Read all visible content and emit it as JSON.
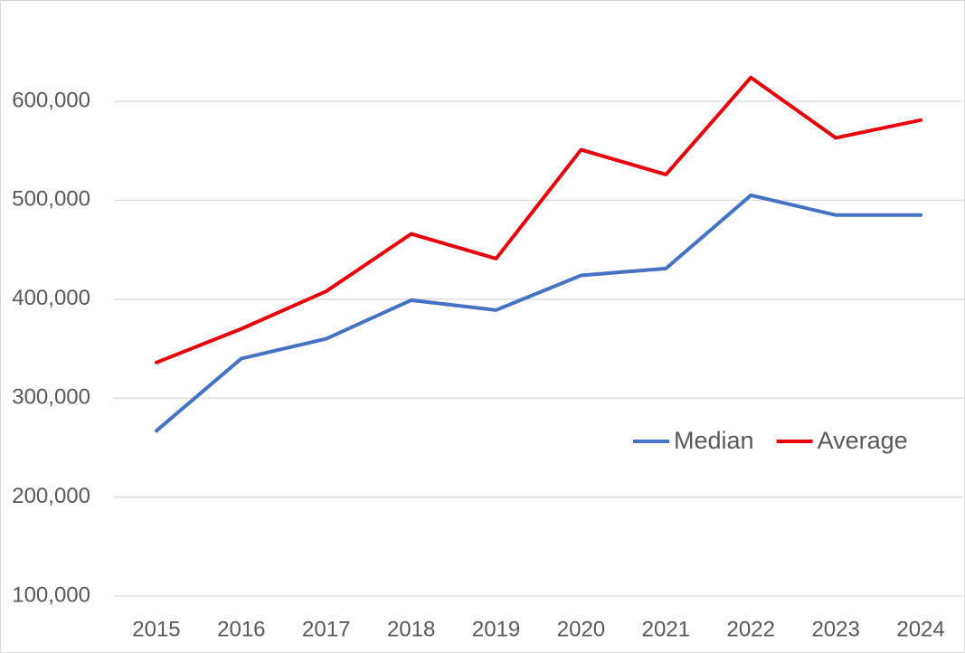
{
  "chart_data": {
    "type": "line",
    "categories": [
      "2015",
      "2016",
      "2017",
      "2018",
      "2019",
      "2020",
      "2021",
      "2022",
      "2023",
      "2024"
    ],
    "series": [
      {
        "name": "Median",
        "color": "#4472c4",
        "values": [
          267000,
          340000,
          360000,
          399000,
          389000,
          424000,
          431000,
          505000,
          485000,
          485000
        ]
      },
      {
        "name": "Average",
        "color": "#e8000b",
        "values": [
          336000,
          370000,
          408000,
          466000,
          441000,
          551000,
          526000,
          624000,
          563000,
          581000
        ]
      }
    ],
    "ylim": [
      100000,
      650000
    ],
    "yticks": [
      {
        "value": 100000,
        "label": "100,000"
      },
      {
        "value": 200000,
        "label": "200,000"
      },
      {
        "value": 300000,
        "label": "300,000"
      },
      {
        "value": 400000,
        "label": "400,000"
      },
      {
        "value": 500000,
        "label": "500,000"
      },
      {
        "value": 600000,
        "label": "600,000"
      }
    ],
    "grid": true,
    "legend": "right"
  }
}
